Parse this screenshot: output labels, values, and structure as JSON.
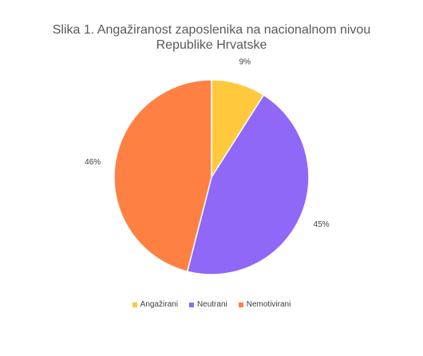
{
  "chart_data": {
    "type": "pie",
    "title": "Slika 1. Angažiranost zaposlenika na nacionalnom nivou Republike Hrvatske",
    "categories": [
      "Angažirani",
      "Neutrani",
      "Nemotivirani"
    ],
    "values": [
      9,
      45,
      46
    ],
    "value_labels": [
      "9%",
      "45%",
      "46%"
    ],
    "colors": [
      "#ffc83d",
      "#8f68f7",
      "#ff8043"
    ],
    "legend": "bottom"
  }
}
